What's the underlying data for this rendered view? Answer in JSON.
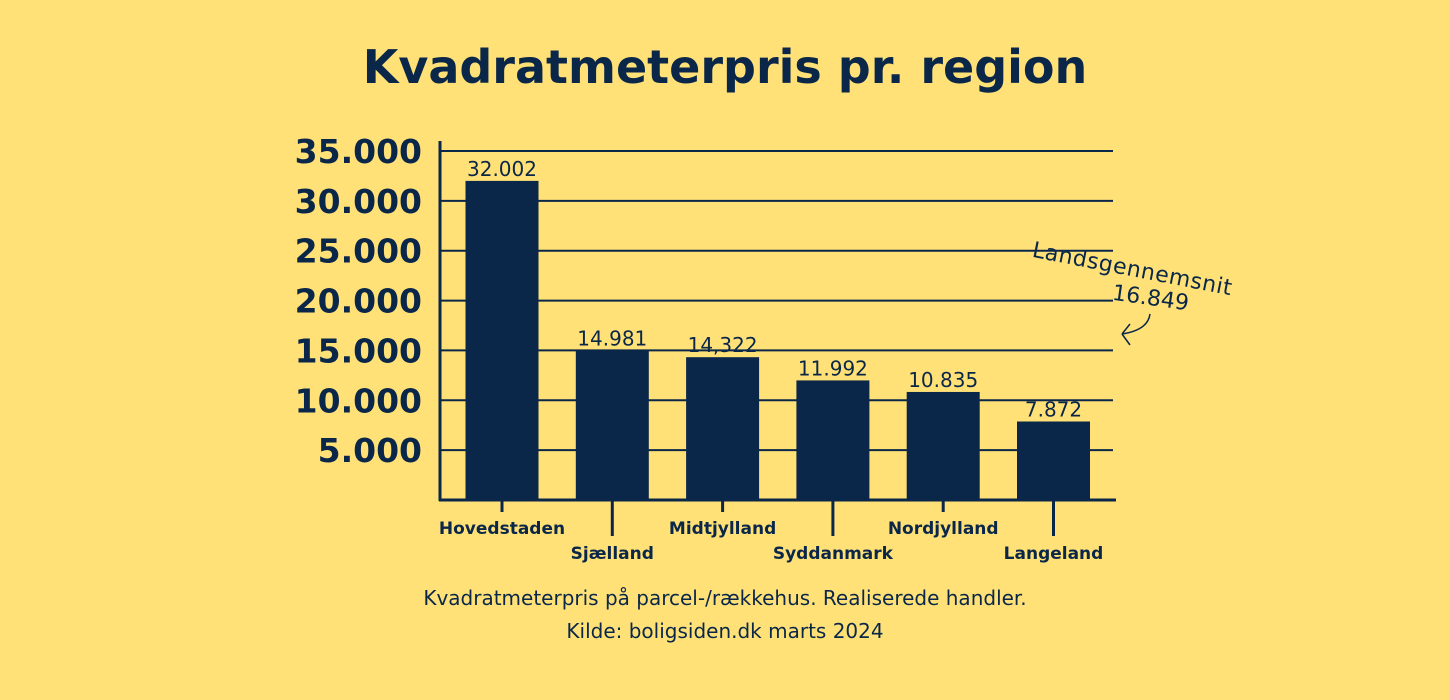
{
  "chart_data": {
    "type": "bar",
    "title": "Kvadratmeterpris pr. region",
    "categories": [
      "Hovedstaden",
      "Sjælland",
      "Midtjylland",
      "Syddanmark",
      "Nordjylland",
      "Langeland"
    ],
    "values": [
      32002,
      14981,
      14322,
      11992,
      10835,
      7872
    ],
    "data_labels": [
      "32.002",
      "14.981",
      "14,322",
      "11.992",
      "10.835",
      "7.872"
    ],
    "ylim": [
      0,
      35000
    ],
    "yticks": [
      5000,
      10000,
      15000,
      20000,
      25000,
      30000,
      35000
    ],
    "ytick_labels": [
      "5.000",
      "10.000",
      "15.000",
      "20.000",
      "25.000",
      "30.000",
      "35.000"
    ],
    "grid": true,
    "bar_color": "#0A2749",
    "background": "#FFE177",
    "annotation": {
      "label": "Landsgennemsnit",
      "value": "16.849"
    }
  },
  "caption": {
    "line1": "Kvadratmeterpris på parcel-/rækkehus. Realiserede handler.",
    "line2": "Kilde: boligsiden.dk marts 2024"
  }
}
